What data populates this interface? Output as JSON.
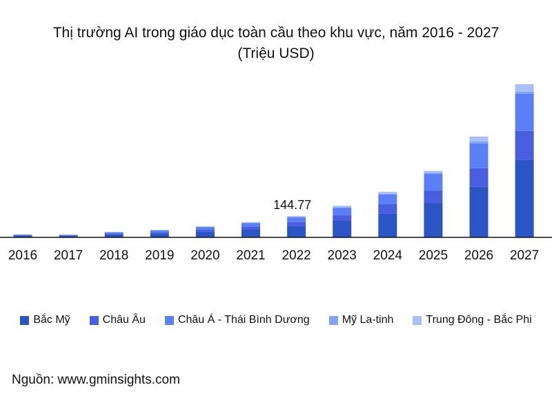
{
  "chart_data": {
    "type": "bar",
    "stacked": true,
    "title": "Thị trường AI trong giáo dục toàn cầu theo khu vực, năm 2016 - 2027",
    "subtitle": "(Triệu USD)",
    "categories": [
      "2016",
      "2017",
      "2018",
      "2019",
      "2020",
      "2021",
      "2022",
      "2023",
      "2024",
      "2025",
      "2026",
      "2027"
    ],
    "series": [
      {
        "name": "Bắc Mỹ",
        "color": "#2b55c4",
        "values": [
          10.4,
          9.9,
          19.2,
          26.5,
          39,
          53.5,
          75.0,
          112,
          159,
          233,
          341,
          523
        ]
      },
      {
        "name": "Châu Âu",
        "color": "#4a5fe0",
        "values": [
          3.8,
          3.6,
          7.0,
          9.7,
          14.2,
          19.6,
          28.0,
          37,
          65,
          84,
          126,
          196
        ]
      },
      {
        "name": "Châu Á - Thái Bình Dương",
        "color": "#5b80f5",
        "values": [
          4.4,
          4.2,
          8.1,
          11.2,
          16.5,
          22.6,
          32.8,
          51,
          65,
          112,
          168,
          252
        ]
      },
      {
        "name": "Mỹ La-tinh",
        "color": "#86a2f7",
        "values": [
          0.4,
          0.4,
          0.7,
          1.0,
          1.5,
          2.1,
          2.5,
          4,
          5,
          7,
          14,
          14
        ]
      },
      {
        "name": "Trung Đông - Bắc Phi",
        "color": "#a9c1f8",
        "values": [
          1.0,
          0.9,
          1.9,
          2.6,
          3.8,
          5.2,
          6.47,
          10,
          14,
          14,
          33,
          51
        ]
      }
    ],
    "annotations": [
      {
        "category": "2022",
        "label": "144.77"
      }
    ],
    "ylim": [
      0,
      1100
    ],
    "grid": false,
    "legend": "bottom"
  },
  "source": "Nguồn: www.gminsights.com"
}
